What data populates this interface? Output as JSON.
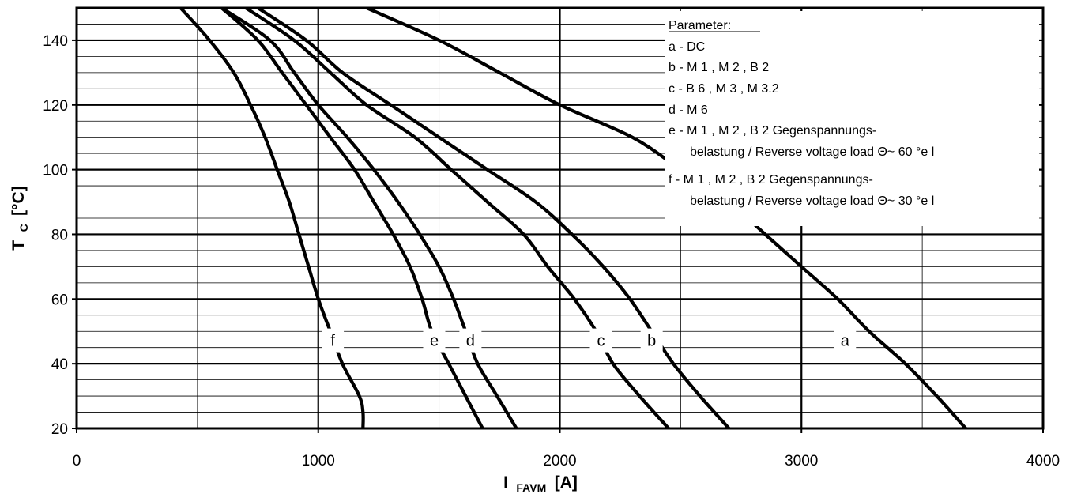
{
  "chart_data": {
    "type": "line",
    "xlabel": {
      "main": "I",
      "sub": "FAVM",
      "unit": "[A]"
    },
    "ylabel": {
      "main": "T",
      "sub": "C",
      "unit": "[°C]"
    },
    "xlim": [
      0,
      4000
    ],
    "ylim": [
      20,
      150
    ],
    "x_ticks": [
      0,
      1000,
      2000,
      3000,
      4000
    ],
    "y_ticks": [
      20,
      40,
      60,
      80,
      100,
      120,
      140
    ],
    "grid": {
      "major_x": [
        1000,
        2000,
        3000
      ],
      "minor_x": [
        500,
        1500,
        2500,
        3500
      ],
      "major_y": [
        40,
        60,
        80,
        100,
        120,
        140
      ],
      "minor_y_step": 5
    },
    "legend": {
      "placement": "top-right",
      "title": "Parameter:",
      "lines": [
        "a - DC",
        "b - M 1 , M 2 , B 2",
        "c - B 6 , M 3 , M 3.2",
        "d - M 6",
        "e - M 1 , M 2 , B 2 Gegenspannungs-",
        "belastung / Reverse voltage load Θ~ 60 °e l",
        "f  - M 1 , M 2 , B 2 Gegenspannungs-",
        "belastung / Reverse voltage load Θ~ 30 °e l"
      ]
    },
    "series": [
      {
        "name": "a",
        "label_at": [
          3180,
          46
        ],
        "points": [
          [
            1200,
            150
          ],
          [
            1500,
            140
          ],
          [
            1750,
            130
          ],
          [
            2000,
            120
          ],
          [
            2300,
            110
          ],
          [
            2500,
            100
          ],
          [
            2700,
            90
          ],
          [
            2850,
            80
          ],
          [
            3000,
            70
          ],
          [
            3150,
            60
          ],
          [
            3280,
            50
          ],
          [
            3430,
            40
          ],
          [
            3560,
            30
          ],
          [
            3680,
            20
          ]
        ]
      },
      {
        "name": "b",
        "label_at": [
          2380,
          46
        ],
        "points": [
          [
            750,
            150
          ],
          [
            950,
            140
          ],
          [
            1100,
            130
          ],
          [
            1300,
            120
          ],
          [
            1500,
            110
          ],
          [
            1700,
            100
          ],
          [
            1900,
            90
          ],
          [
            2050,
            80
          ],
          [
            2180,
            70
          ],
          [
            2290,
            60
          ],
          [
            2380,
            50
          ],
          [
            2470,
            40
          ],
          [
            2580,
            30
          ],
          [
            2700,
            20
          ]
        ]
      },
      {
        "name": "c",
        "label_at": [
          2170,
          46
        ],
        "points": [
          [
            700,
            150
          ],
          [
            900,
            140
          ],
          [
            1050,
            130
          ],
          [
            1200,
            120
          ],
          [
            1400,
            110
          ],
          [
            1550,
            100
          ],
          [
            1700,
            90
          ],
          [
            1850,
            80
          ],
          [
            1950,
            70
          ],
          [
            2060,
            60
          ],
          [
            2150,
            50
          ],
          [
            2220,
            40
          ],
          [
            2330,
            30
          ],
          [
            2450,
            20
          ]
        ]
      },
      {
        "name": "d",
        "label_at": [
          1630,
          46
        ],
        "points": [
          [
            600,
            150
          ],
          [
            800,
            140
          ],
          [
            900,
            130
          ],
          [
            1000,
            120
          ],
          [
            1120,
            110
          ],
          [
            1230,
            100
          ],
          [
            1330,
            90
          ],
          [
            1420,
            80
          ],
          [
            1500,
            70
          ],
          [
            1560,
            60
          ],
          [
            1610,
            50
          ],
          [
            1660,
            40
          ],
          [
            1740,
            30
          ],
          [
            1820,
            20
          ]
        ]
      },
      {
        "name": "e",
        "label_at": [
          1480,
          46
        ],
        "points": [
          [
            600,
            150
          ],
          [
            750,
            140
          ],
          [
            850,
            130
          ],
          [
            950,
            120
          ],
          [
            1050,
            110
          ],
          [
            1150,
            100
          ],
          [
            1230,
            90
          ],
          [
            1310,
            80
          ],
          [
            1380,
            70
          ],
          [
            1430,
            60
          ],
          [
            1470,
            50
          ],
          [
            1540,
            40
          ],
          [
            1610,
            30
          ],
          [
            1680,
            20
          ]
        ]
      },
      {
        "name": "f",
        "label_at": [
          1060,
          46
        ],
        "points": [
          [
            430,
            150
          ],
          [
            550,
            140
          ],
          [
            650,
            130
          ],
          [
            720,
            120
          ],
          [
            780,
            110
          ],
          [
            830,
            100
          ],
          [
            880,
            90
          ],
          [
            920,
            80
          ],
          [
            960,
            70
          ],
          [
            1000,
            60
          ],
          [
            1050,
            50
          ],
          [
            1100,
            40
          ],
          [
            1170,
            30
          ],
          [
            1185,
            25
          ],
          [
            1185,
            20
          ]
        ]
      }
    ]
  }
}
